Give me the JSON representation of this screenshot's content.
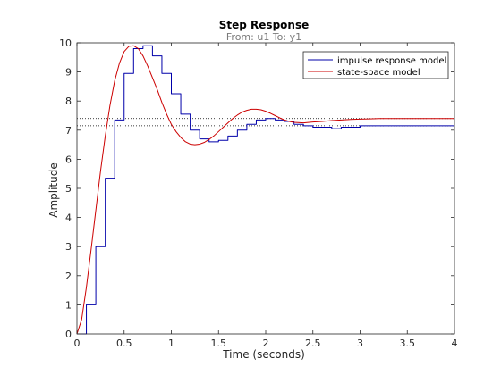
{
  "chart_data": {
    "type": "line",
    "title": "Step Response",
    "subtitle": "From: u1  To: y1",
    "xlabel": "Time (seconds)",
    "ylabel": "Amplitude",
    "xlim": [
      0,
      4
    ],
    "ylim": [
      0,
      10
    ],
    "xticks": [
      0,
      0.5,
      1,
      1.5,
      2,
      2.5,
      3,
      3.5,
      4
    ],
    "xtick_labels": [
      "0",
      "0.5",
      "1",
      "1.5",
      "2",
      "2.5",
      "3",
      "3.5",
      "4"
    ],
    "yticks": [
      0,
      1,
      2,
      3,
      4,
      5,
      6,
      7,
      8,
      9,
      10
    ],
    "ytick_labels": [
      "0",
      "1",
      "2",
      "3",
      "4",
      "5",
      "6",
      "7",
      "8",
      "9",
      "10"
    ],
    "grid": false,
    "legend_position": "top-right",
    "steady_state_lines": [
      7.15,
      7.4
    ],
    "series": [
      {
        "name": "impulse response model",
        "color": "#0000aa",
        "style": "stairs",
        "dt": 0.1,
        "x": [
          0,
          0.1,
          0.2,
          0.3,
          0.4,
          0.5,
          0.6,
          0.7,
          0.8,
          0.9,
          1.0,
          1.1,
          1.2,
          1.3,
          1.4,
          1.5,
          1.6,
          1.7,
          1.8,
          1.9,
          2.0,
          2.1,
          2.2,
          2.3,
          2.4,
          2.5,
          2.6,
          2.7,
          2.8,
          2.9,
          3.0,
          3.1,
          3.2,
          3.3,
          3.4,
          3.5,
          3.6,
          3.7,
          3.8,
          3.9
        ],
        "values": [
          0,
          1.0,
          3.0,
          5.35,
          7.35,
          8.95,
          9.8,
          9.9,
          9.55,
          8.95,
          8.25,
          7.55,
          7.0,
          6.7,
          6.6,
          6.65,
          6.8,
          7.0,
          7.2,
          7.35,
          7.4,
          7.35,
          7.3,
          7.2,
          7.15,
          7.1,
          7.1,
          7.05,
          7.1,
          7.1,
          7.15,
          7.15,
          7.15,
          7.15,
          7.15,
          7.15,
          7.15,
          7.15,
          7.15,
          7.15
        ]
      },
      {
        "name": "state-space model",
        "color": "#cc0000",
        "style": "line",
        "x": [
          0,
          0.05,
          0.1,
          0.15,
          0.2,
          0.25,
          0.3,
          0.35,
          0.4,
          0.45,
          0.5,
          0.55,
          0.6,
          0.65,
          0.7,
          0.75,
          0.8,
          0.85,
          0.9,
          0.95,
          1.0,
          1.05,
          1.1,
          1.15,
          1.2,
          1.25,
          1.3,
          1.35,
          1.4,
          1.45,
          1.5,
          1.55,
          1.6,
          1.65,
          1.7,
          1.75,
          1.8,
          1.85,
          1.9,
          1.95,
          2.0,
          2.05,
          2.1,
          2.15,
          2.2,
          2.25,
          2.3,
          2.4,
          2.5,
          2.6,
          2.7,
          2.8,
          2.9,
          3.0,
          3.1,
          3.2,
          3.3,
          3.4,
          3.5,
          3.6,
          3.7,
          3.8,
          3.9,
          4.0
        ],
        "values": [
          0,
          0.5,
          1.6,
          2.9,
          4.25,
          5.6,
          6.8,
          7.85,
          8.7,
          9.3,
          9.7,
          9.88,
          9.9,
          9.8,
          9.55,
          9.2,
          8.8,
          8.4,
          7.95,
          7.55,
          7.2,
          6.95,
          6.75,
          6.6,
          6.52,
          6.5,
          6.52,
          6.58,
          6.68,
          6.8,
          6.95,
          7.1,
          7.25,
          7.4,
          7.52,
          7.62,
          7.68,
          7.72,
          7.72,
          7.7,
          7.65,
          7.58,
          7.5,
          7.42,
          7.35,
          7.3,
          7.27,
          7.25,
          7.28,
          7.3,
          7.33,
          7.35,
          7.37,
          7.38,
          7.39,
          7.4,
          7.4,
          7.4,
          7.4,
          7.4,
          7.4,
          7.4,
          7.4,
          7.4
        ]
      }
    ]
  }
}
